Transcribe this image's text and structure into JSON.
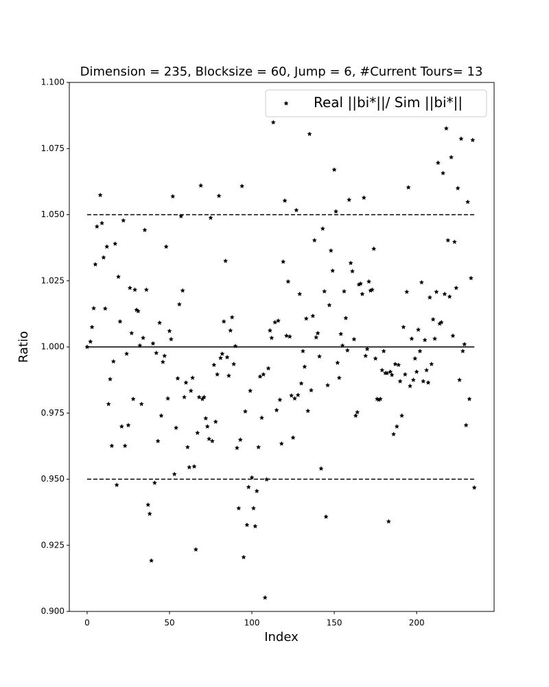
{
  "chart_data": {
    "type": "scatter",
    "title": "Dimension = 235, Blocksize = 60, Jump = 6, #Current Tours= 13",
    "xlabel": "Index",
    "ylabel": "Ratio",
    "legend": "upper right",
    "marker": "star",
    "xlim": [
      -10.8,
      247
    ],
    "xticks": [
      0,
      50,
      100,
      150,
      200
    ],
    "ylim": [
      0.9,
      1.1
    ],
    "yticks": [
      {
        "value": 0.9,
        "label": "0.900"
      },
      {
        "value": 0.925,
        "label": "0.925"
      },
      {
        "value": 0.95,
        "label": "0.950"
      },
      {
        "value": 0.975,
        "label": "0.975"
      },
      {
        "value": 1.0,
        "label": "1.000"
      },
      {
        "value": 1.025,
        "label": "1.025"
      },
      {
        "value": 1.05,
        "label": "1.050"
      },
      {
        "value": 1.075,
        "label": "1.075"
      },
      {
        "value": 1.1,
        "label": "1.100"
      }
    ],
    "hlines": [
      {
        "value": 1.05,
        "style": "dashed"
      },
      {
        "value": 1.0,
        "style": "solid"
      },
      {
        "value": 0.95,
        "style": "dashed"
      }
    ],
    "series": [
      {
        "name": "Real ||bi*||/ Sim ||bi*||",
        "color": "#000000",
        "x": [
          0,
          2,
          3,
          4,
          5,
          6,
          8,
          9,
          10,
          11,
          12,
          13,
          14,
          15,
          16,
          17,
          18,
          19,
          20,
          21,
          22,
          23,
          24,
          25,
          26,
          27,
          28,
          29,
          30,
          31,
          32,
          33,
          34,
          35,
          36,
          37,
          38,
          39,
          40,
          41,
          42,
          43,
          44,
          45,
          46,
          47,
          48,
          49,
          50,
          51,
          52,
          53,
          54,
          55,
          56,
          57,
          58,
          59,
          60,
          61,
          62,
          63,
          64,
          65,
          66,
          67,
          68,
          69,
          70,
          71,
          72,
          73,
          74,
          75,
          76,
          77,
          78,
          79,
          80,
          81,
          82,
          83,
          84,
          85,
          86,
          87,
          88,
          89,
          90,
          91,
          92,
          93,
          94,
          95,
          96,
          97,
          98,
          99,
          100,
          101,
          102,
          103,
          104,
          105,
          106,
          107,
          108,
          109,
          110,
          111,
          112,
          113,
          114,
          115,
          116,
          117,
          118,
          119,
          120,
          121,
          122,
          123,
          124,
          125,
          126,
          127,
          128,
          129,
          130,
          131,
          132,
          133,
          134,
          135,
          136,
          137,
          138,
          139,
          140,
          141,
          142,
          143,
          144,
          145,
          146,
          147,
          148,
          149,
          150,
          151,
          152,
          153,
          154,
          155,
          156,
          157,
          158,
          159,
          160,
          161,
          162,
          163,
          164,
          165,
          166,
          167,
          168,
          169,
          170,
          171,
          172,
          173,
          174,
          175,
          176,
          177,
          178,
          179,
          180,
          181,
          182,
          183,
          184,
          185,
          186,
          187,
          188,
          189,
          190,
          191,
          192,
          193,
          194,
          195,
          196,
          197,
          198,
          199,
          200,
          201,
          202,
          203,
          204,
          205,
          206,
          207,
          208,
          209,
          210,
          211,
          212,
          213,
          214,
          215,
          216,
          217,
          218,
          219,
          220,
          221,
          222,
          223,
          224,
          225,
          226,
          227,
          228,
          229,
          230,
          231,
          232,
          233,
          234,
          235
        ],
        "values": [
          1.0,
          1.002,
          1.0075,
          1.0146,
          1.0312,
          1.0455,
          1.0574,
          1.0468,
          1.0338,
          1.0145,
          1.0379,
          0.9784,
          0.9878,
          0.9626,
          0.9945,
          1.039,
          0.9478,
          1.0265,
          1.0096,
          0.9699,
          1.0478,
          0.9626,
          0.9974,
          0.9704,
          1.0223,
          1.0052,
          0.9803,
          1.0216,
          1.014,
          1.0135,
          1.0005,
          0.9784,
          1.0034,
          1.0442,
          1.0216,
          0.9403,
          0.9369,
          0.9192,
          1.0013,
          0.9486,
          0.9977,
          0.9644,
          1.0091,
          0.974,
          0.9943,
          0.9966,
          1.0379,
          0.9805,
          1.006,
          1.0029,
          1.0569,
          0.9519,
          0.9694,
          0.9881,
          1.0161,
          1.0494,
          1.0213,
          0.981,
          0.9865,
          0.9621,
          0.9545,
          0.9834,
          0.9883,
          0.9548,
          0.9234,
          0.9675,
          0.981,
          1.061,
          0.9803,
          0.981,
          0.973,
          0.9699,
          0.9652,
          1.0488,
          0.9644,
          0.9932,
          0.9717,
          0.9896,
          1.0571,
          0.9958,
          0.9974,
          1.0096,
          1.0325,
          0.9961,
          0.9891,
          1.0062,
          1.0112,
          0.9935,
          1.0003,
          0.9618,
          0.939,
          0.9649,
          1.0608,
          0.9205,
          0.9756,
          0.9327,
          0.947,
          0.9834,
          0.9506,
          0.939,
          0.9322,
          0.9455,
          0.9621,
          0.9888,
          0.9732,
          0.9896,
          0.9052,
          0.9499,
          0.9919,
          1.0062,
          1.0034,
          1.0849,
          1.0093,
          0.9761,
          1.0099,
          0.98,
          0.9634,
          1.0322,
          1.0553,
          1.0042,
          1.0247,
          1.0039,
          0.9816,
          0.9657,
          0.9805,
          1.0517,
          0.9818,
          1.02,
          0.9862,
          0.9984,
          0.9925,
          1.0107,
          0.9758,
          1.0805,
          0.9836,
          1.0117,
          1.0403,
          1.0036,
          1.0052,
          0.9964,
          0.954,
          1.0447,
          1.021,
          0.9358,
          0.9855,
          1.0158,
          1.0364,
          1.0288,
          1.067,
          1.0512,
          0.994,
          0.9883,
          1.0049,
          1.0005,
          1.021,
          1.0109,
          0.9987,
          1.0556,
          1.0317,
          1.0286,
          1.0029,
          0.974,
          0.9753,
          1.0236,
          1.0239,
          1.02,
          1.0564,
          0.9966,
          0.9992,
          1.0247,
          1.0213,
          1.0216,
          1.0371,
          0.9956,
          0.9803,
          0.98,
          0.9803,
          0.9912,
          0.9984,
          0.9901,
          0.9901,
          0.934,
          0.9906,
          0.9894,
          0.967,
          0.9935,
          0.9699,
          0.9932,
          0.987,
          0.974,
          1.0075,
          0.9896,
          1.0208,
          1.0603,
          0.9852,
          1.0031,
          0.9875,
          0.9956,
          0.9906,
          1.0065,
          0.9984,
          1.0244,
          0.987,
          1.0026,
          0.9912,
          0.9865,
          1.0187,
          0.9935,
          1.0104,
          1.0031,
          1.0208,
          1.0696,
          1.0088,
          1.0093,
          1.0657,
          1.02,
          1.0826,
          1.0403,
          1.019,
          1.0717,
          1.0042,
          1.0397,
          1.0223,
          1.06,
          0.9875,
          1.0787,
          0.9984,
          1.001,
          0.9704,
          1.0548,
          0.9803,
          1.026,
          1.0782,
          0.9468
        ]
      }
    ]
  }
}
